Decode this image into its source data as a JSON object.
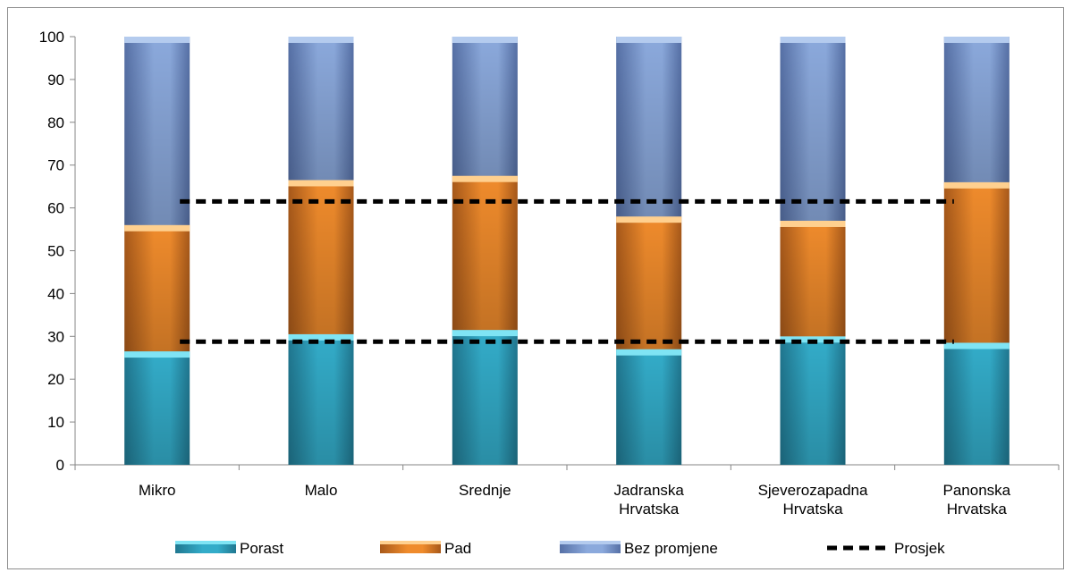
{
  "chart_data": {
    "type": "bar",
    "stacked": true,
    "categories": [
      [
        "Mikro"
      ],
      [
        "Malo"
      ],
      [
        "Srednje"
      ],
      [
        "Jadranska",
        "Hrvatska"
      ],
      [
        "Sjeverozapadna",
        "Hrvatska"
      ],
      [
        "Panonska",
        "Hrvatska"
      ]
    ],
    "series": [
      {
        "name": "Porast",
        "values": [
          26.5,
          30.5,
          31.5,
          27,
          30,
          28.5
        ],
        "colors": {
          "top": "#7fe4f4",
          "mid": "#33acc9",
          "dark": "#207790"
        }
      },
      {
        "name": "Pad",
        "values": [
          29.5,
          36,
          36,
          31,
          27,
          37.5
        ],
        "colors": {
          "top": "#ffd08f",
          "mid": "#ef8b2c",
          "dark": "#a8591a"
        }
      },
      {
        "name": "Bez promjene",
        "values": [
          44,
          33.5,
          32.5,
          42,
          43,
          34
        ],
        "colors": {
          "top": "#b4cbee",
          "mid": "#8ba9dc",
          "dark": "#5670a6"
        }
      }
    ],
    "reference_lines": {
      "name": "Prosjek",
      "values": [
        61.5,
        28.75
      ]
    },
    "ylim": [
      0,
      100
    ],
    "yticks": [
      0,
      10,
      20,
      30,
      40,
      50,
      60,
      70,
      80,
      90,
      100
    ],
    "grid": false,
    "legend": "bottom",
    "legend_labels": [
      "Porast",
      "Pad",
      "Bez promjene",
      "Prosjek"
    ]
  }
}
